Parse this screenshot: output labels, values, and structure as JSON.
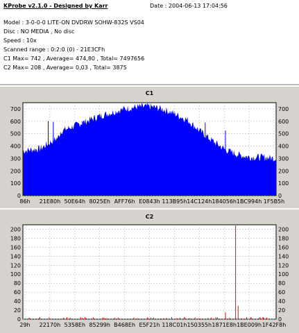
{
  "header": {
    "title": "KProbe v2.1.0 - Designed by Karr",
    "date": "Date : 2004-06-13 17:04:56",
    "model": "Model : 3-0-0-0 LITE-ON DVDRW SOHW-832S  VS04",
    "disc": "Disc : NO MEDIA , No disc",
    "speed": "Speed : 10x",
    "scanned_range": "Scanned range : 0:2:0 (0) - 21E3CFh",
    "c1_summary": "C1 Max= 742 , Average= 474,80 , Total= 7497656",
    "c2_summary": "C2 Max= 208 , Average= 0,03 , Total= 3875"
  },
  "colors": {
    "panel_bg": "#d6d3ce",
    "c1_bars": "#0000ff",
    "c2_bars": "#ff0000",
    "grid": "#bbbbbb"
  },
  "chart_data": [
    {
      "type": "area",
      "title": "C1",
      "ylim": [
        0,
        750
      ],
      "y_ticks": [
        "0",
        "100",
        "200",
        "300",
        "400",
        "500",
        "600",
        "700"
      ],
      "x_tick_labels": [
        "86h",
        "21E80h",
        "50E64h",
        "8025Eh",
        "AFF76h",
        "E0843h",
        "113B95h",
        "14C124h",
        "184056h",
        "1BC994h",
        "1F5B5h"
      ],
      "grid": true,
      "series": [
        {
          "x": [
            0,
            0.03,
            0.07,
            0.1,
            0.14,
            0.15,
            0.2,
            0.25,
            0.3,
            0.35,
            0.4,
            0.45,
            0.5,
            0.55,
            0.6,
            0.65,
            0.7,
            0.75,
            0.8,
            0.85,
            0.9,
            0.95,
            1.0
          ],
          "values": [
            360,
            370,
            380,
            420,
            470,
            520,
            560,
            600,
            640,
            670,
            700,
            715,
            720,
            700,
            660,
            610,
            520,
            440,
            370,
            330,
            310,
            310,
            300
          ]
        }
      ],
      "spikes": [
        {
          "x": 0.1,
          "value": 600
        },
        {
          "x": 0.12,
          "value": 595
        },
        {
          "x": 0.235,
          "value": 600
        },
        {
          "x": 0.72,
          "value": 590
        },
        {
          "x": 0.8,
          "value": 525
        }
      ]
    },
    {
      "type": "bar",
      "title": "C2",
      "ylim": [
        0,
        210
      ],
      "y_ticks": [
        "0",
        "20",
        "40",
        "60",
        "80",
        "100",
        "120",
        "140",
        "160",
        "180",
        "200"
      ],
      "x_tick_labels": [
        "29h",
        "22170h",
        "5358Eh",
        "85299h",
        "B468Eh",
        "E5F21h",
        "118C01h",
        "150355h",
        "1871E8h",
        "1BE009h",
        "1F42F8h"
      ],
      "grid": true,
      "series": [
        {
          "x": [
            0.84,
            0.85,
            0.8
          ],
          "values": [
            208,
            30,
            15
          ]
        }
      ]
    }
  ]
}
